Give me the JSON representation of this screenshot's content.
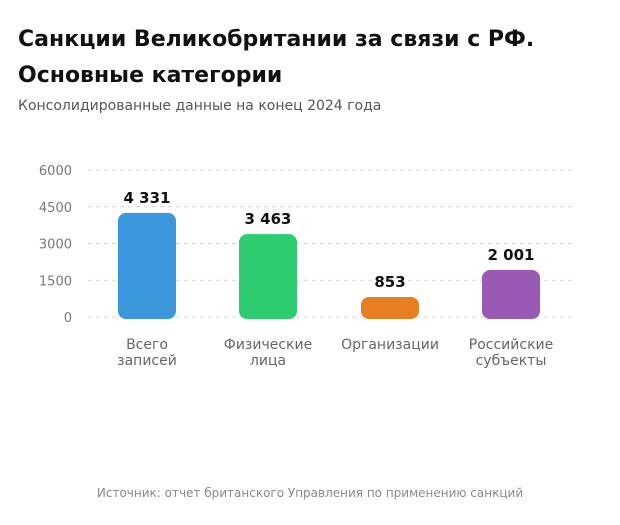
{
  "header": {
    "title": "Санкции Великобритании за связи с РФ. Основные категории",
    "subtitle": "Консолидированные данные на конец 2024 года"
  },
  "footer": {
    "source": "Источник: отчет британского Управления по применению санкций"
  },
  "chart_data": {
    "type": "bar",
    "categories": [
      [
        "Всего",
        "записей"
      ],
      [
        "Физические",
        "лица"
      ],
      [
        "Организации"
      ],
      [
        "Российские",
        "субъекты"
      ]
    ],
    "values": [
      4331,
      3463,
      853,
      2001
    ],
    "value_labels": [
      "4 331",
      "3 463",
      "853",
      "2 001"
    ],
    "colors": [
      "#3a97dc",
      "#2ecc71",
      "#e67e22",
      "#9b59b6"
    ],
    "yticks": [
      0,
      1500,
      3000,
      4500,
      6000
    ],
    "ylim": [
      0,
      6000
    ],
    "grid": true,
    "legend": "none"
  }
}
